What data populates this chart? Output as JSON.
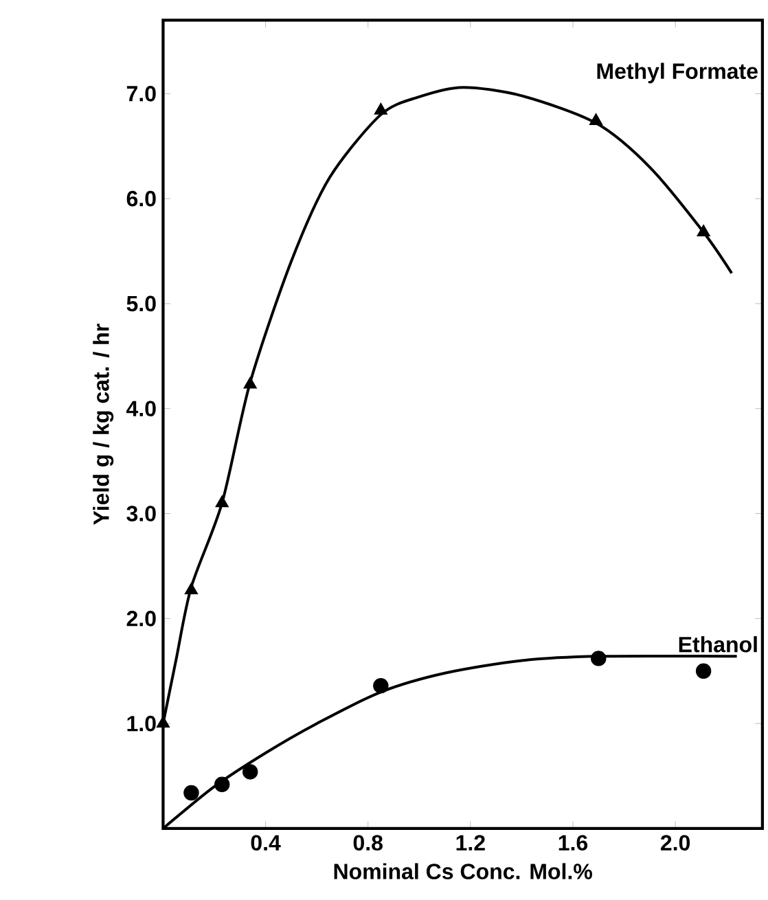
{
  "chart_data": {
    "type": "scatter",
    "xlabel": "Nominal Cs Conc. Mol.%",
    "ylabel": "Yield g / kg cat. / hr",
    "xlim": [
      0,
      2.34
    ],
    "ylim": [
      0,
      7.7
    ],
    "xticks": [
      0.4,
      0.8,
      1.2,
      1.6,
      {
        "value": 2,
        "label": "2.0"
      }
    ],
    "yticks": [
      {
        "value": 1,
        "label": "1.0"
      },
      {
        "value": 2,
        "label": "2.0"
      },
      {
        "value": 3,
        "label": "3.0"
      },
      {
        "value": 4,
        "label": "4.0"
      },
      {
        "value": 5,
        "label": "5.0"
      },
      {
        "value": 6,
        "label": "6.0"
      },
      {
        "value": 7,
        "label": "7.0"
      }
    ],
    "series": [
      {
        "marker": "triangle",
        "color": "#000000",
        "x": [
          0,
          0.11,
          0.23,
          0.34,
          0.85,
          1.69,
          2.11
        ],
        "values": [
          1.0,
          2.27,
          3.1,
          4.23,
          6.84,
          6.74,
          5.68
        ]
      },
      {
        "type": "line",
        "marker": "none",
        "name": "Methyl Formate",
        "color": "#000000",
        "x": [
          0,
          0.05,
          0.11,
          0.23,
          0.34,
          0.5,
          0.65,
          0.85,
          1.0,
          1.17,
          1.4,
          1.69,
          1.9,
          2.11,
          2.22
        ],
        "values": [
          1.0,
          1.6,
          2.3,
          3.1,
          4.25,
          5.4,
          6.2,
          6.8,
          6.97,
          7.06,
          6.98,
          6.72,
          6.3,
          5.68,
          5.29
        ]
      },
      {
        "marker": "circle",
        "color": "#000000",
        "x": [
          0.11,
          0.23,
          0.34,
          0.85,
          1.7,
          2.11
        ],
        "values": [
          0.34,
          0.42,
          0.54,
          1.36,
          1.62,
          1.5
        ]
      },
      {
        "type": "line",
        "marker": "none",
        "name": "Ethanol",
        "color": "#000000",
        "x": [
          0,
          0.2,
          0.4,
          0.6,
          0.85,
          1.1,
          1.4,
          1.7,
          2.24
        ],
        "values": [
          0,
          0.4,
          0.72,
          1.0,
          1.3,
          1.48,
          1.6,
          1.64,
          1.64
        ]
      }
    ]
  }
}
